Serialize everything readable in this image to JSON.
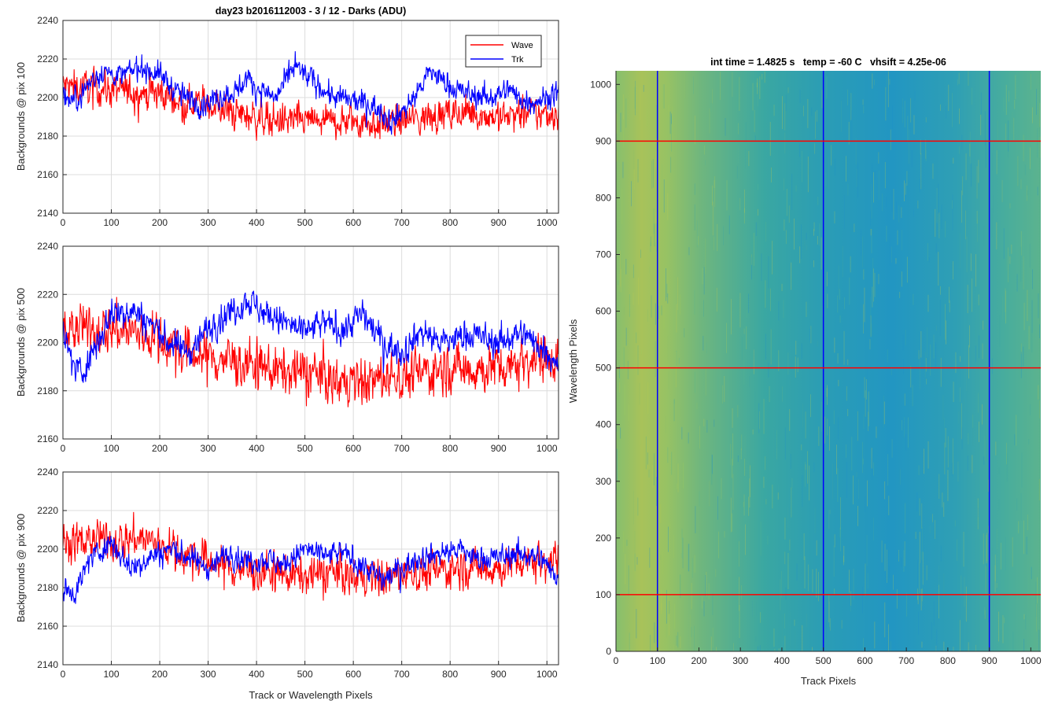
{
  "figure": {
    "left_title": "day23 b2016112003 - 3 / 12 - Darks (ADU)",
    "right_title": "int time = 1.4825 s   temp = -60 C   vhsift = 4.25e-06",
    "legend": [
      "Wave",
      "Trk"
    ],
    "colors": {
      "wave": "#ff0000",
      "trk": "#0000ff",
      "grid": "#dcdcdc",
      "axis": "#262626"
    }
  },
  "chart_data": [
    {
      "type": "line",
      "title": "day23 b2016112003 - 3 / 12 - Darks (ADU)",
      "xlabel": "",
      "ylabel": "Backgrounds @ pix 100",
      "xlim": [
        0,
        1024
      ],
      "ylim": [
        2140,
        2240
      ],
      "xticks": [
        0,
        100,
        200,
        300,
        400,
        500,
        600,
        700,
        800,
        900,
        1000
      ],
      "yticks": [
        2140,
        2160,
        2180,
        2200,
        2220,
        2240
      ],
      "grid": true,
      "legend_position": "top-right",
      "series": [
        {
          "name": "Wave",
          "color": "#ff0000",
          "x": [
            0,
            50,
            100,
            150,
            200,
            250,
            300,
            350,
            400,
            450,
            500,
            550,
            600,
            650,
            700,
            750,
            800,
            850,
            900,
            950,
            1024
          ],
          "values": [
            2206,
            2205,
            2204,
            2203,
            2202,
            2198,
            2197,
            2192,
            2190,
            2188,
            2188,
            2187,
            2188,
            2186,
            2188,
            2190,
            2191,
            2192,
            2190,
            2191,
            2192
          ],
          "noise": 7
        },
        {
          "name": "Trk",
          "color": "#0000ff",
          "x": [
            0,
            25,
            50,
            80,
            120,
            160,
            200,
            240,
            280,
            320,
            360,
            380,
            400,
            440,
            480,
            520,
            560,
            600,
            640,
            680,
            720,
            760,
            800,
            840,
            880,
            920,
            960,
            1000,
            1024
          ],
          "values": [
            2200,
            2198,
            2206,
            2214,
            2211,
            2216,
            2212,
            2202,
            2196,
            2200,
            2204,
            2210,
            2205,
            2200,
            2216,
            2208,
            2200,
            2198,
            2196,
            2188,
            2198,
            2214,
            2205,
            2202,
            2200,
            2204,
            2198,
            2200,
            2203
          ],
          "noise": 5
        }
      ]
    },
    {
      "type": "line",
      "title": "",
      "xlabel": "",
      "ylabel": "Backgrounds @ pix 500",
      "xlim": [
        0,
        1024
      ],
      "ylim": [
        2160,
        2240
      ],
      "xticks": [
        0,
        100,
        200,
        300,
        400,
        500,
        600,
        700,
        800,
        900,
        1000
      ],
      "yticks": [
        2160,
        2180,
        2200,
        2220,
        2240
      ],
      "grid": true,
      "series": [
        {
          "name": "Wave",
          "color": "#ff0000",
          "x": [
            0,
            50,
            100,
            150,
            200,
            250,
            300,
            350,
            400,
            450,
            500,
            550,
            600,
            650,
            700,
            750,
            800,
            850,
            900,
            950,
            1024
          ],
          "values": [
            2206,
            2205,
            2206,
            2204,
            2202,
            2196,
            2194,
            2192,
            2190,
            2188,
            2188,
            2185,
            2183,
            2185,
            2186,
            2188,
            2190,
            2189,
            2190,
            2193,
            2195
          ],
          "noise": 8
        },
        {
          "name": "Trk",
          "color": "#0000ff",
          "x": [
            0,
            20,
            40,
            70,
            100,
            140,
            180,
            220,
            260,
            300,
            340,
            380,
            420,
            460,
            500,
            540,
            580,
            620,
            660,
            700,
            740,
            780,
            820,
            860,
            900,
            940,
            980,
            1024
          ],
          "values": [
            2205,
            2190,
            2188,
            2200,
            2212,
            2214,
            2208,
            2200,
            2196,
            2206,
            2212,
            2218,
            2212,
            2208,
            2204,
            2208,
            2206,
            2212,
            2200,
            2196,
            2205,
            2200,
            2202,
            2203,
            2200,
            2204,
            2200,
            2192
          ],
          "noise": 5
        }
      ]
    },
    {
      "type": "line",
      "title": "",
      "xlabel": "Track or Wavelength Pixels",
      "ylabel": "Backgrounds @ pix 900",
      "xlim": [
        0,
        1024
      ],
      "ylim": [
        2140,
        2240
      ],
      "xticks": [
        0,
        100,
        200,
        300,
        400,
        500,
        600,
        700,
        800,
        900,
        1000
      ],
      "yticks": [
        2140,
        2160,
        2180,
        2200,
        2220,
        2240
      ],
      "grid": true,
      "series": [
        {
          "name": "Wave",
          "color": "#ff0000",
          "x": [
            0,
            50,
            100,
            150,
            200,
            250,
            300,
            350,
            400,
            450,
            500,
            550,
            600,
            650,
            700,
            750,
            800,
            850,
            900,
            950,
            1024
          ],
          "values": [
            2203,
            2205,
            2204,
            2206,
            2203,
            2197,
            2194,
            2190,
            2188,
            2187,
            2186,
            2188,
            2186,
            2185,
            2187,
            2188,
            2190,
            2191,
            2190,
            2195,
            2194
          ],
          "noise": 8
        },
        {
          "name": "Trk",
          "color": "#0000ff",
          "x": [
            0,
            25,
            60,
            100,
            140,
            180,
            220,
            260,
            300,
            340,
            380,
            420,
            460,
            500,
            540,
            580,
            620,
            660,
            700,
            740,
            780,
            820,
            860,
            900,
            940,
            980,
            1024
          ],
          "values": [
            2180,
            2178,
            2196,
            2204,
            2190,
            2196,
            2200,
            2196,
            2190,
            2198,
            2194,
            2195,
            2192,
            2200,
            2196,
            2198,
            2192,
            2184,
            2190,
            2196,
            2198,
            2200,
            2194,
            2196,
            2198,
            2196,
            2186
          ],
          "noise": 5
        }
      ]
    },
    {
      "type": "heatmap",
      "title": "int time = 1.4825 s   temp = -60 C   vhsift = 4.25e-06",
      "xlabel": "Track Pixels",
      "ylabel": "Wavelength Pixels",
      "xlim": [
        0,
        1024
      ],
      "ylim": [
        0,
        1024
      ],
      "xticks": [
        0,
        100,
        200,
        300,
        400,
        500,
        600,
        700,
        800,
        900,
        1000
      ],
      "yticks": [
        0,
        100,
        200,
        300,
        400,
        500,
        600,
        700,
        800,
        900,
        1000
      ],
      "colormap": "parula",
      "vertical_lines": {
        "x": [
          100,
          500,
          900
        ],
        "color": "#0000ff"
      },
      "horizontal_lines": {
        "y": [
          100,
          500,
          900
        ],
        "color": "#ff0000"
      }
    }
  ]
}
